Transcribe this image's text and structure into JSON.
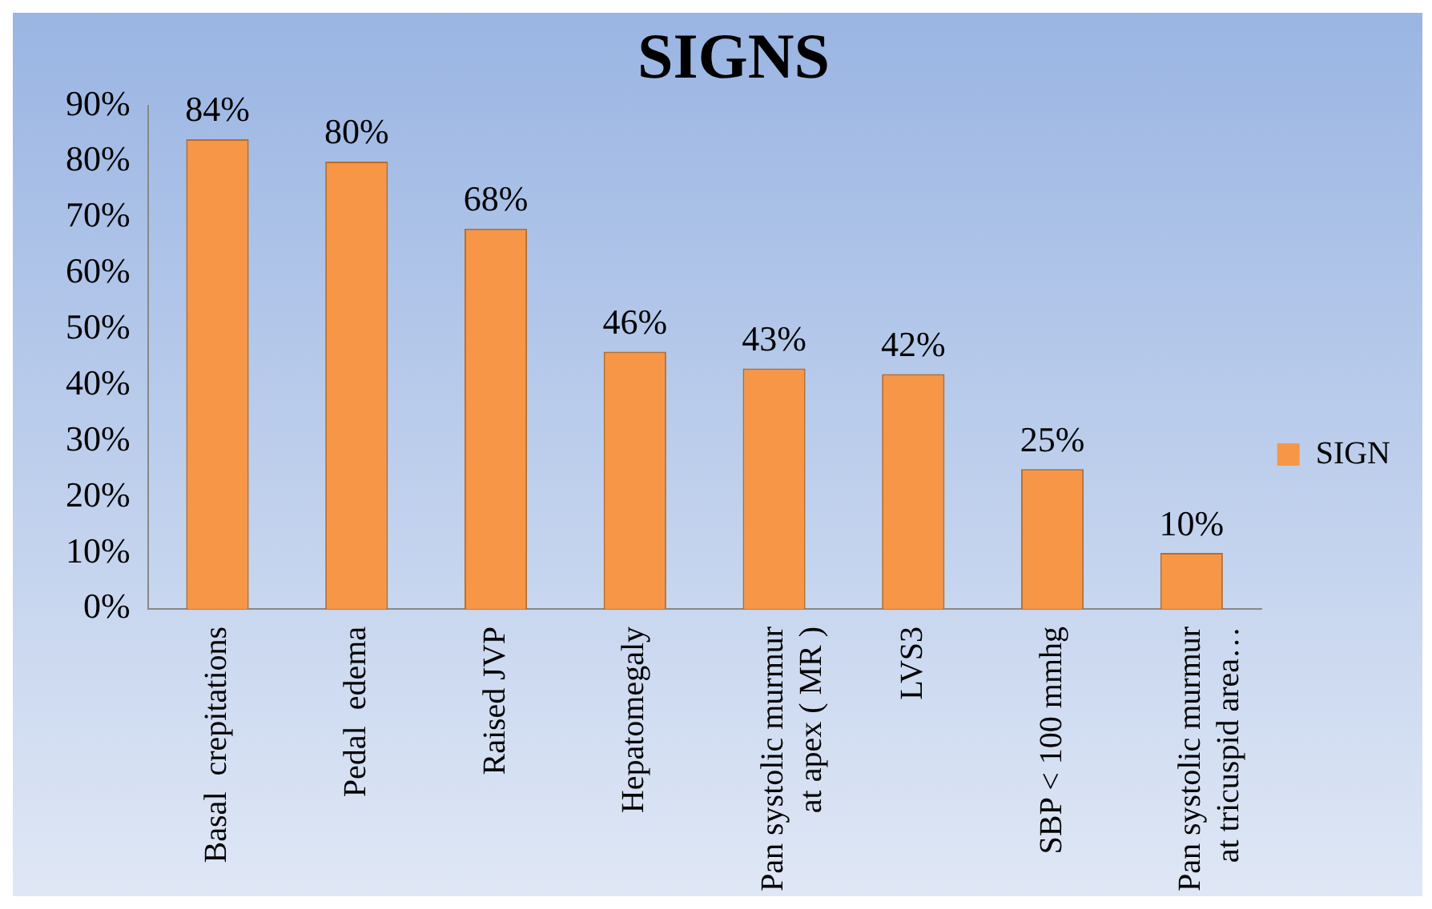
{
  "chart_data": {
    "type": "bar",
    "title": "SIGNS",
    "categories": [
      "Basal  crepitations",
      "Pedal  edema",
      "Raised JVP",
      "Hepatomegaly",
      "Pan systolic murmur\nat apex ( MR )",
      "LVS3",
      "SBP < 100 mmhg",
      "Pan systolic murmur\nat tricuspid area…"
    ],
    "series": [
      {
        "name": "SIGN",
        "color": "#f79646",
        "values": [
          84,
          80,
          68,
          46,
          43,
          42,
          25,
          10
        ],
        "value_labels": [
          "84%",
          "80%",
          "68%",
          "46%",
          "43%",
          "42%",
          "25%",
          "10%"
        ]
      }
    ],
    "ylim": [
      0,
      90
    ],
    "yticks": [
      {
        "value": 0,
        "label": "0%"
      },
      {
        "value": 10,
        "label": "10%"
      },
      {
        "value": 20,
        "label": "20%"
      },
      {
        "value": 30,
        "label": "30%"
      },
      {
        "value": 40,
        "label": "40%"
      },
      {
        "value": 50,
        "label": "50%"
      },
      {
        "value": 60,
        "label": "60%"
      },
      {
        "value": 70,
        "label": "70%"
      },
      {
        "value": 80,
        "label": "80%"
      },
      {
        "value": 90,
        "label": "90%"
      }
    ],
    "grid": false,
    "legend": "right"
  }
}
